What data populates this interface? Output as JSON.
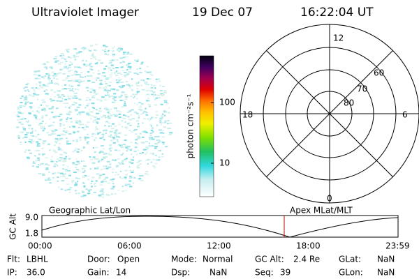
{
  "header": {
    "instrument": "Ultraviolet Imager",
    "date": "19 Dec 07",
    "time": "16:22:04 UT"
  },
  "colorbar": {
    "label": "photon cm⁻²s⁻¹",
    "ticks": [
      "100",
      "10"
    ]
  },
  "polar": {
    "labels": [
      "12",
      "60",
      "70",
      "80",
      "18",
      "6",
      "0"
    ]
  },
  "timeline": {
    "left_title": "Geographic Lat/Lon",
    "right_title": "Apex MLat/MLT",
    "y_label": "GC Alt",
    "y_ticks": [
      "9.0",
      "1.8"
    ],
    "x_ticks": [
      "00:00",
      "06:00",
      "12:00",
      "18:00",
      "23:59"
    ]
  },
  "footer": [
    [
      {
        "label": "Flt:",
        "value": "LBHL"
      },
      {
        "label": "Door:",
        "value": "Open"
      },
      {
        "label": "Mode:",
        "value": "Normal"
      },
      {
        "label": "GC Alt:",
        "value": "2.4 Re"
      },
      {
        "label": "GLat:",
        "value": "NaN"
      }
    ],
    [
      {
        "label": "IP:",
        "value": "36.0"
      },
      {
        "label": "Gain:",
        "value": "14"
      },
      {
        "label": "Dsp:",
        "value": "NaN"
      },
      {
        "label": "Seq:",
        "value": "39"
      },
      {
        "label": "GLon:",
        "value": "NaN"
      }
    ]
  ]
}
